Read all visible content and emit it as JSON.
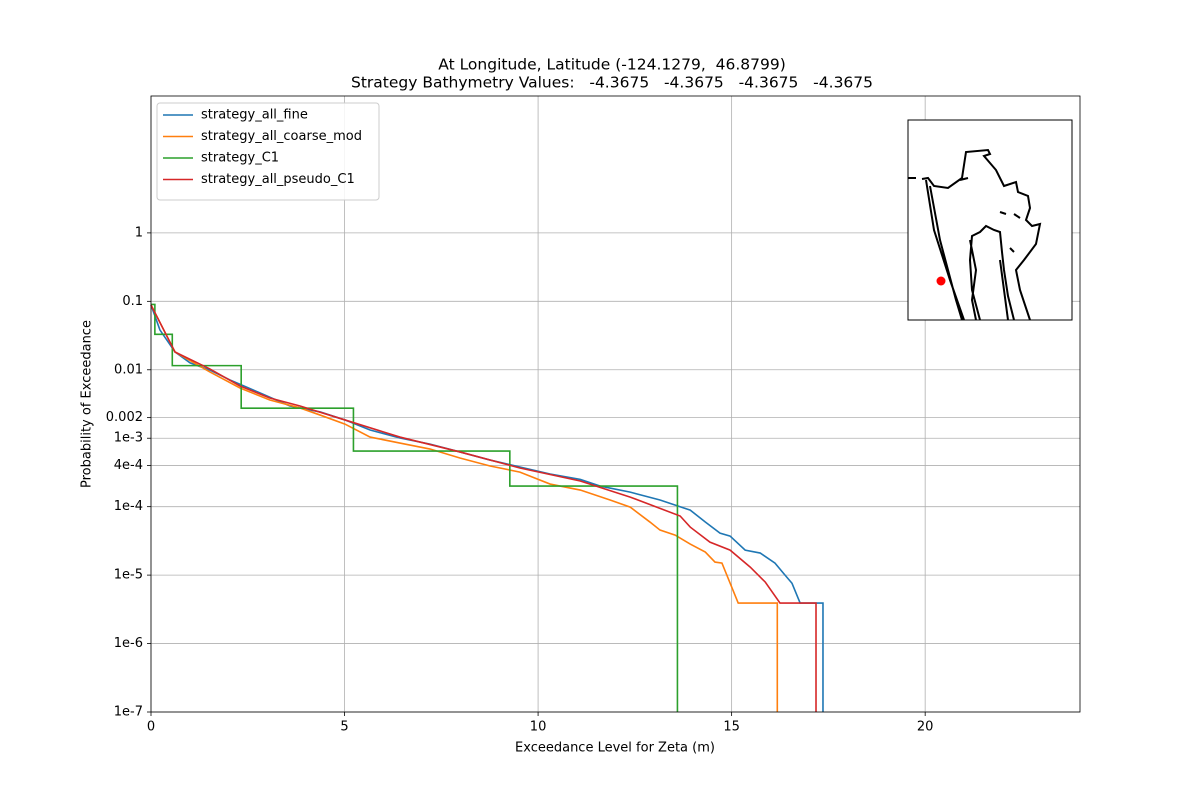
{
  "chart_data": {
    "type": "line",
    "title": "At Longitude, Latitude (-124.1279,  46.8799)",
    "subtitle": "Strategy Bathymetry Values:   -4.3675   -4.3675   -4.3675   -4.3675",
    "x_label": "Exceedance Level for Zeta (m)",
    "y_label": "Probability of Exceedance",
    "xlim": [
      0,
      24
    ],
    "xticks": [
      0,
      5,
      10,
      15,
      20
    ],
    "ylim": [
      1e-07,
      100
    ],
    "yscale": "log",
    "yticks": [
      1,
      0.1,
      0.01,
      0.002,
      {
        "value": 0.001,
        "label": "1e-3"
      },
      {
        "value": 0.0004,
        "label": "4e-4"
      },
      {
        "value": 0.0001,
        "label": "1e-4"
      },
      {
        "value": 1e-05,
        "label": "1e-5"
      },
      {
        "value": 1e-06,
        "label": "1e-6"
      },
      {
        "value": 1e-07,
        "label": "1e-7"
      }
    ],
    "grid": true,
    "legend": "upper left",
    "series": [
      {
        "name": "strategy_all_fine",
        "color": "#1f77b4",
        "x": [
          0,
          0.23,
          0.62,
          1.01,
          1.52,
          2.04,
          2.82,
          3.59,
          4.37,
          5.01,
          5.66,
          6.43,
          7.21,
          7.98,
          8.76,
          9.53,
          10.31,
          11.09,
          11.6,
          12.38,
          13.15,
          13.93,
          14.32,
          14.7,
          14.96,
          15.35,
          15.74,
          16.12,
          16.38,
          16.56,
          16.77,
          17.36,
          17.36
        ],
        "values": [
          0.0886,
          0.0382,
          0.0182,
          0.0126,
          0.0099,
          0.0071,
          0.00458,
          0.00296,
          0.00242,
          0.00185,
          0.00132,
          0.00101,
          0.00082,
          0.00063,
          0.00048,
          0.00038,
          0.0003,
          0.00025,
          0.0002,
          0.000163,
          0.000125,
          8.9e-05,
          5.96e-05,
          4.11e-05,
          3.72e-05,
          2.32e-05,
          2.1e-05,
          1.5e-05,
          1e-05,
          7.6e-06,
          3.9e-06,
          3.9e-06,
          1e-07
        ]
      },
      {
        "name": "strategy_all_coarse_mod",
        "color": "#ff7f0e",
        "x": [
          0,
          0.62,
          1.52,
          2.3,
          3.07,
          3.85,
          4.37,
          5.01,
          5.66,
          6.43,
          7.21,
          7.98,
          8.76,
          9.53,
          10.31,
          11.09,
          11.86,
          12.38,
          12.89,
          13.15,
          13.54,
          13.93,
          14.32,
          14.57,
          14.75,
          15.17,
          16.18,
          16.18
        ],
        "values": [
          0.0886,
          0.0182,
          0.0093,
          0.00542,
          0.00362,
          0.00277,
          0.00218,
          0.00161,
          0.00104,
          0.00085,
          0.000695,
          0.000514,
          0.000393,
          0.00032,
          0.000214,
          0.000175,
          0.000125,
          9.86e-05,
          5.96e-05,
          4.55e-05,
          3.84e-05,
          2.84e-05,
          2.17e-05,
          1.55e-05,
          1.5e-05,
          3.9e-06,
          3.9e-06,
          1e-07
        ]
      },
      {
        "name": "strategy_C1",
        "color": "#2ca02c",
        "x": [
          0,
          0.1,
          0.1,
          0.55,
          0.55,
          2.33,
          2.33,
          5.23,
          5.23,
          9.27,
          9.27,
          13.6,
          13.6
        ],
        "values": [
          0.09,
          0.09,
          0.033,
          0.033,
          0.0115,
          0.0115,
          0.00275,
          0.00275,
          0.00065,
          0.00065,
          0.0002,
          0.0002,
          1e-07
        ]
      },
      {
        "name": "strategy_all_pseudo_C1",
        "color": "#d62728",
        "x": [
          0,
          0.62,
          1.52,
          2.3,
          3.07,
          3.85,
          5.01,
          6.43,
          7.98,
          9.53,
          11.09,
          12.38,
          13.67,
          13.93,
          14.44,
          14.96,
          15.48,
          15.87,
          16.25,
          17.18,
          17.18
        ],
        "values": [
          0.0886,
          0.0182,
          0.0103,
          0.0058,
          0.00387,
          0.00296,
          0.00185,
          0.00104,
          0.00063,
          0.000367,
          0.000237,
          0.000138,
          7.3e-05,
          5.03e-05,
          3.03e-05,
          2.32e-05,
          1.31e-05,
          7.9e-06,
          3.9e-06,
          3.9e-06,
          1e-07
        ]
      }
    ]
  }
}
